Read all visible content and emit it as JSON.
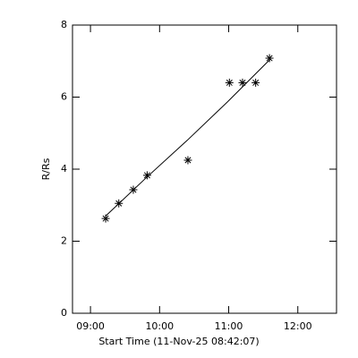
{
  "chart_data": {
    "type": "scatter",
    "x_label": "Start Time (11-Nov-25 08:42:07)",
    "y_label": "R/Rs",
    "series": [
      {
        "x": [
          9.22,
          9.41,
          9.62,
          9.82,
          10.41,
          11.01,
          11.2,
          11.39,
          11.59
        ],
        "values": [
          2.63,
          3.05,
          3.43,
          3.83,
          4.25,
          6.4,
          6.4,
          6.4,
          7.08
        ],
        "color": "#000000",
        "marker": "asterisk"
      }
    ],
    "fit": {
      "x": [
        9.22,
        9.8,
        10.4,
        11.0,
        11.6
      ],
      "values": [
        2.7,
        3.75,
        4.8,
        5.9,
        7.05
      ],
      "color": "#000000"
    },
    "xlim": [
      8.74,
      12.56
    ],
    "xticks": [
      {
        "value": 9,
        "label": "09:00"
      },
      {
        "value": 10,
        "label": "10:00"
      },
      {
        "value": 11,
        "label": "11:00"
      },
      {
        "value": 12,
        "label": "12:00"
      }
    ],
    "ylim": [
      0,
      8
    ],
    "yticks": [
      0,
      2,
      4,
      6,
      8
    ]
  }
}
